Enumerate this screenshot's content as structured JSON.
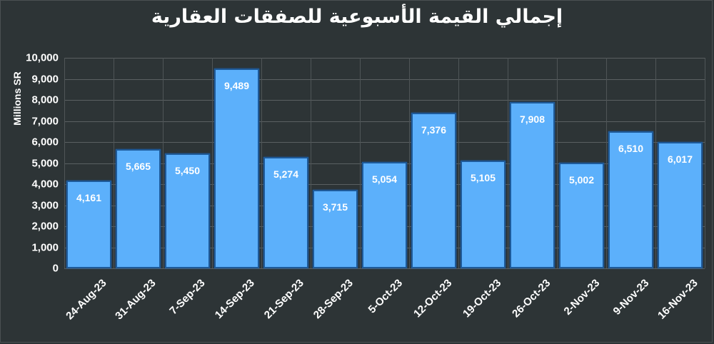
{
  "chart_data": {
    "type": "bar",
    "title": "إجمالي القيمة الأسبوعية للصفقات العقارية",
    "xlabel": "",
    "ylabel": "Millions SR",
    "ylim": [
      0,
      10000
    ],
    "yticks": [
      "0",
      "1,000",
      "2,000",
      "3,000",
      "4,000",
      "5,000",
      "6,000",
      "7,000",
      "8,000",
      "9,000",
      "10,000"
    ],
    "grid": true,
    "legend": "none",
    "categories": [
      "24-Aug-23",
      "31-Aug-23",
      "7-Sep-23",
      "14-Sep-23",
      "21-Sep-23",
      "28-Sep-23",
      "5-Oct-23",
      "12-Oct-23",
      "19-Oct-23",
      "26-Oct-23",
      "2-Nov-23",
      "9-Nov-23",
      "16-Nov-23"
    ],
    "values": [
      4161,
      5665,
      5450,
      9489,
      5274,
      3715,
      5054,
      7376,
      5105,
      7908,
      5002,
      6510,
      6017
    ],
    "labels": [
      "4,161",
      "5,665",
      "5,450",
      "9,489",
      "5,274",
      "3,715",
      "5,054",
      "7,376",
      "5,105",
      "7,908",
      "5,002",
      "6,510",
      "6,017"
    ],
    "colors": {
      "bar": "#5cb0fb",
      "bar_border": "#1e5a99",
      "background": "#2d3436"
    }
  }
}
